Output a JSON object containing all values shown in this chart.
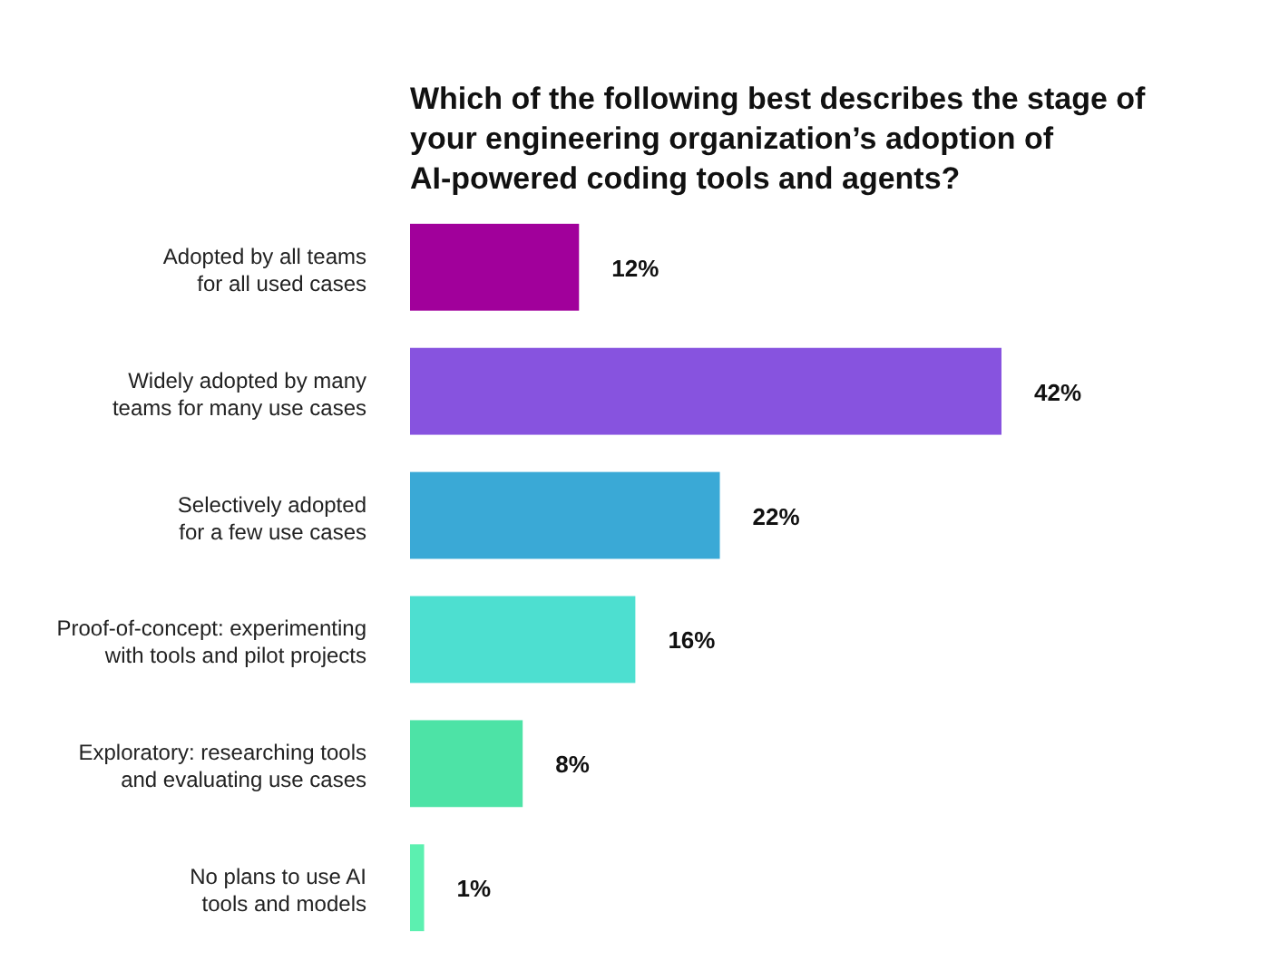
{
  "chart_data": {
    "type": "bar",
    "orientation": "horizontal",
    "title": "Which of the following best describes the stage of your engineering organization’s adoption of AI-powered coding tools and agents?",
    "categories": [
      "Adopted by all teams for all used cases",
      "Widely adopted by many teams for many use cases",
      "Selectively adopted for a few use cases",
      "Proof-of-concept: experimenting with tools and pilot projects",
      "Exploratory: researching tools and evaluating use cases",
      "No plans to use AI tools and models"
    ],
    "values": [
      12,
      42,
      22,
      16,
      8,
      1
    ],
    "colors": [
      "#a1009b",
      "#8753df",
      "#3aa9d6",
      "#4ddfd0",
      "#4de3a6",
      "#5cf0b0"
    ],
    "value_labels": [
      "12%",
      "42%",
      "22%",
      "16%",
      "8%",
      "1%"
    ]
  }
}
